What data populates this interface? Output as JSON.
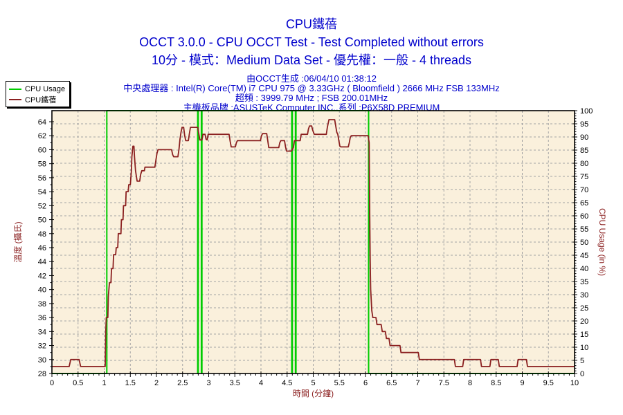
{
  "header": {
    "title": "CPU鐵蓓",
    "subtitle": "OCCT 3.0.0 - CPU OCCT Test - Test Completed without errors",
    "config_line": "10分 - 模式：Medium Data Set - 優先權：一般 - 4 threads",
    "generated_line": "由OCCT生成 :06/04/10 01:38:12",
    "cpu_line": "中央處理器 : Intel(R) Core(TM) i7 CPU 975 @ 3.33GHz ( Bloomfield ) 2666 MHz FSB 133MHz",
    "overclock_line": "超頻 : 3999.79 MHz ; FSB 200.01MHz",
    "motherboard_line": "主機板品牌 :ASUSTeK Computer INC.,系列 :P6X58D PREMIUM"
  },
  "legend": {
    "items": [
      {
        "label": "CPU Usage",
        "color": "#00CC00"
      },
      {
        "label": "CPU鐵蓓",
        "color": "#8B2020"
      }
    ]
  },
  "chart_data": {
    "type": "line",
    "title": "CPU鐵蓓",
    "xlabel": "時間 (分鐘)",
    "x_range": [
      0,
      10
    ],
    "x_tick": 0.5,
    "x_minor_tick": 0.1,
    "grid": "on",
    "grid_color": "#A3A3A3",
    "plot_bg_color": "#FAF0DC",
    "axis_color": "#000000",
    "axis_title_color": "#8B2020",
    "y_left": {
      "label": "溫度 (攝氏)",
      "min": 28,
      "max": 64,
      "tick": 2,
      "minor_tick": 1
    },
    "y_right": {
      "label": "CPU Usage (in %)",
      "min": 0,
      "max": 100,
      "tick": 5,
      "minor_tick": 1
    },
    "series": [
      {
        "name": "CPU Usage",
        "axis": "right",
        "color": "#00CC00",
        "points": [
          [
            0,
            0
          ],
          [
            1.05,
            0
          ],
          [
            1.05,
            100
          ],
          [
            2.79,
            100
          ],
          [
            2.79,
            0
          ],
          [
            2.8,
            0
          ],
          [
            2.8,
            100
          ],
          [
            2.86,
            100
          ],
          [
            2.86,
            0
          ],
          [
            2.87,
            0
          ],
          [
            2.87,
            100
          ],
          [
            4.59,
            100
          ],
          [
            4.59,
            0
          ],
          [
            4.6,
            0
          ],
          [
            4.6,
            100
          ],
          [
            4.66,
            100
          ],
          [
            4.66,
            0
          ],
          [
            4.67,
            0
          ],
          [
            4.67,
            100
          ],
          [
            6.06,
            100
          ],
          [
            6.06,
            0
          ],
          [
            10,
            0
          ]
        ]
      },
      {
        "name": "CPU鐵蓓",
        "axis": "left",
        "color": "#8B2020",
        "points": [
          [
            0,
            29
          ],
          [
            0.33,
            29
          ],
          [
            0.36,
            30
          ],
          [
            0.52,
            30
          ],
          [
            0.55,
            29
          ],
          [
            1.02,
            29
          ],
          [
            1.03,
            34
          ],
          [
            1.04,
            36
          ],
          [
            1.07,
            36
          ],
          [
            1.08,
            39
          ],
          [
            1.1,
            41
          ],
          [
            1.13,
            41
          ],
          [
            1.14,
            43
          ],
          [
            1.17,
            43
          ],
          [
            1.18,
            45
          ],
          [
            1.22,
            45
          ],
          [
            1.23,
            46
          ],
          [
            1.26,
            46
          ],
          [
            1.27,
            48
          ],
          [
            1.32,
            48
          ],
          [
            1.33,
            50
          ],
          [
            1.36,
            50
          ],
          [
            1.37,
            52
          ],
          [
            1.41,
            52
          ],
          [
            1.42,
            54
          ],
          [
            1.46,
            54
          ],
          [
            1.47,
            55
          ],
          [
            1.5,
            55
          ],
          [
            1.52,
            57
          ],
          [
            1.53,
            59
          ],
          [
            1.55,
            60.5
          ],
          [
            1.57,
            60.5
          ],
          [
            1.58,
            59
          ],
          [
            1.6,
            57
          ],
          [
            1.62,
            56
          ],
          [
            1.63,
            55.5
          ],
          [
            1.68,
            55.5
          ],
          [
            1.7,
            56.5
          ],
          [
            1.72,
            57
          ],
          [
            1.77,
            57
          ],
          [
            1.78,
            57.5
          ],
          [
            1.97,
            57.5
          ],
          [
            1.99,
            58.5
          ],
          [
            2.01,
            59.5
          ],
          [
            2.03,
            60
          ],
          [
            2.29,
            60
          ],
          [
            2.31,
            59.3
          ],
          [
            2.33,
            59
          ],
          [
            2.41,
            59
          ],
          [
            2.43,
            60
          ],
          [
            2.45,
            61.5
          ],
          [
            2.47,
            62.5
          ],
          [
            2.49,
            63.2
          ],
          [
            2.52,
            63.2
          ],
          [
            2.54,
            62
          ],
          [
            2.56,
            61.3
          ],
          [
            2.61,
            61.3
          ],
          [
            2.63,
            62.3
          ],
          [
            2.65,
            63.2
          ],
          [
            2.79,
            63.2
          ],
          [
            2.81,
            62.3
          ],
          [
            2.83,
            61.4
          ],
          [
            2.87,
            61.4
          ],
          [
            2.89,
            62.2
          ],
          [
            2.93,
            62.2
          ],
          [
            2.95,
            61.5
          ],
          [
            2.97,
            61.4
          ],
          [
            2.99,
            62.2
          ],
          [
            3.39,
            62.2
          ],
          [
            3.41,
            61.2
          ],
          [
            3.43,
            60.4
          ],
          [
            3.51,
            60.4
          ],
          [
            3.53,
            61
          ],
          [
            3.55,
            61.3
          ],
          [
            3.99,
            61.3
          ],
          [
            4.01,
            62
          ],
          [
            4.03,
            62.3
          ],
          [
            4.11,
            62.3
          ],
          [
            4.13,
            61.3
          ],
          [
            4.15,
            60.3
          ],
          [
            4.34,
            60.3
          ],
          [
            4.36,
            61
          ],
          [
            4.38,
            61.3
          ],
          [
            4.45,
            61.3
          ],
          [
            4.47,
            60.4
          ],
          [
            4.49,
            59.8
          ],
          [
            4.58,
            59.8
          ],
          [
            4.62,
            60.3
          ],
          [
            4.64,
            61.3
          ],
          [
            4.75,
            61.3
          ],
          [
            4.77,
            62.2
          ],
          [
            4.89,
            62.2
          ],
          [
            4.91,
            63
          ],
          [
            4.93,
            63.4
          ],
          [
            4.97,
            63.4
          ],
          [
            4.99,
            62.8
          ],
          [
            5.02,
            62.2
          ],
          [
            5.25,
            62.2
          ],
          [
            5.27,
            63.2
          ],
          [
            5.3,
            64.3
          ],
          [
            5.41,
            64.3
          ],
          [
            5.43,
            63.4
          ],
          [
            5.45,
            62.5
          ],
          [
            5.47,
            62.2
          ],
          [
            5.49,
            61.3
          ],
          [
            5.51,
            60.5
          ],
          [
            5.53,
            60.4
          ],
          [
            5.67,
            60.4
          ],
          [
            5.69,
            61
          ],
          [
            5.71,
            61.8
          ],
          [
            5.73,
            62
          ],
          [
            6.05,
            62
          ],
          [
            6.07,
            61
          ],
          [
            6.08,
            52
          ],
          [
            6.09,
            44
          ],
          [
            6.1,
            40
          ],
          [
            6.12,
            37
          ],
          [
            6.14,
            36
          ],
          [
            6.2,
            36
          ],
          [
            6.22,
            35
          ],
          [
            6.3,
            35
          ],
          [
            6.32,
            34
          ],
          [
            6.38,
            34
          ],
          [
            6.4,
            33
          ],
          [
            6.45,
            33
          ],
          [
            6.47,
            32
          ],
          [
            6.66,
            32
          ],
          [
            6.68,
            31
          ],
          [
            7.01,
            31
          ],
          [
            7.03,
            30
          ],
          [
            7.7,
            30
          ],
          [
            7.72,
            29
          ],
          [
            7.86,
            29
          ],
          [
            7.88,
            30
          ],
          [
            8.2,
            30
          ],
          [
            8.22,
            29
          ],
          [
            8.38,
            29
          ],
          [
            8.4,
            30
          ],
          [
            8.54,
            30
          ],
          [
            8.56,
            29
          ],
          [
            8.9,
            29
          ],
          [
            8.92,
            30
          ],
          [
            9.08,
            30
          ],
          [
            9.1,
            29
          ],
          [
            10,
            29
          ]
        ]
      }
    ]
  }
}
